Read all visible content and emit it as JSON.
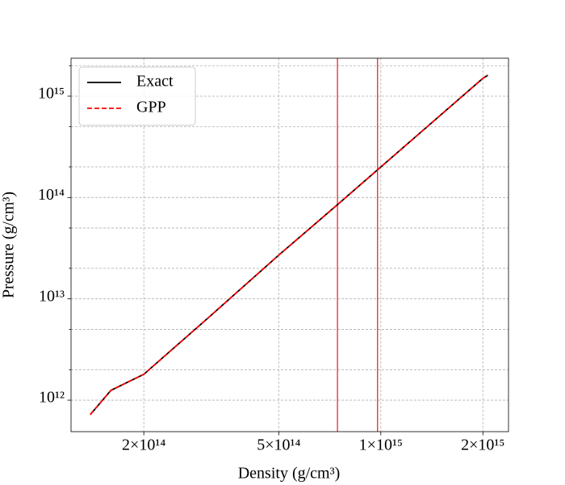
{
  "chart_data": {
    "type": "line",
    "xlabel": "Density (g/cm³)",
    "ylabel": "Pressure (g/cm³)",
    "xlog": true,
    "ylog": true,
    "grid": true,
    "legend": "upper left",
    "xlim": [
      122000000000000.0,
      2380000000000000.0
    ],
    "ylim": [
      489000000000.0,
      2370000000000000.0
    ],
    "xticks": [
      {
        "value": 200000000000000.0,
        "label": "2×10¹⁴"
      },
      {
        "value": 500000000000000.0,
        "label": "5×10¹⁴"
      },
      {
        "value": 1000000000000000.0,
        "label": "1×10¹⁵"
      },
      {
        "value": 2000000000000000.0,
        "label": "2×10¹⁵"
      }
    ],
    "yticks": [
      {
        "value": 1000000000000.0,
        "label": "10¹²"
      },
      {
        "value": 10000000000000.0,
        "label": "10¹³"
      },
      {
        "value": 100000000000000.0,
        "label": "10¹⁴"
      },
      {
        "value": 1000000000000000.0,
        "label": "10¹⁵"
      }
    ],
    "yminorticks": [
      2000000000000.0,
      5000000000000.0,
      20000000000000.0,
      50000000000000.0,
      200000000000000.0,
      500000000000000.0,
      2000000000000000.0
    ],
    "vlines": {
      "color": "#e41a1c",
      "values": [
        745000000000000.0,
        978000000000000.0
      ]
    },
    "x": [
      139000000000000.0,
      160000000000000.0,
      200000000000000.0,
      313000000000000.0,
      500000000000000.0,
      745000000000000.0,
      1000000000000000.0,
      2000000000000000.0,
      2070000000000000.0
    ],
    "series": [
      {
        "name": "Exact",
        "color": "#000000",
        "dash": false,
        "values": [
          720000000000.0,
          1250000000000.0,
          1800000000000.0,
          6700000000000.0,
          27000000000000.0,
          85000000000000.0,
          200000000000000.0,
          1500000000000000.0,
          1610000000000000.0
        ]
      },
      {
        "name": "GPP",
        "color": "#ff0000",
        "dash": true,
        "values": [
          720000000000.0,
          1250000000000.0,
          1800000000000.0,
          6700000000000.0,
          27000000000000.0,
          85000000000000.0,
          200000000000000.0,
          1500000000000000.0,
          1610000000000000.0
        ]
      }
    ]
  }
}
